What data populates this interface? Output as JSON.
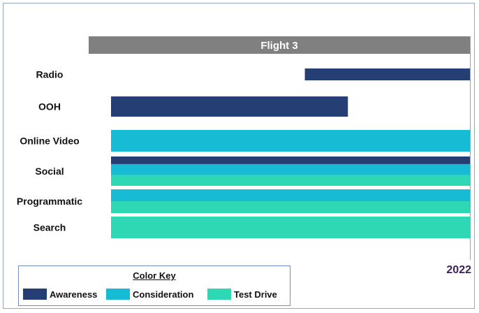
{
  "chart_data": {
    "type": "bar",
    "title": "",
    "header_label": "Flight 3",
    "end_label": "2022",
    "categories": [
      "Radio",
      "OOH",
      "Online Video",
      "Social",
      "Programmatic",
      "Search"
    ],
    "x_range": [
      0,
      1
    ],
    "series": [
      {
        "name": "Awareness",
        "color": "#253f74",
        "bars": [
          {
            "category": "Radio",
            "start": 0.54,
            "end": 1.0,
            "band": [
              0,
              1
            ]
          },
          {
            "category": "OOH",
            "start": 0.0,
            "end": 0.66,
            "band": [
              0,
              1
            ]
          },
          {
            "category": "Social",
            "start": 0.0,
            "end": 1.0,
            "band": [
              0,
              0.26
            ]
          }
        ]
      },
      {
        "name": "Consideration",
        "color": "#17bcd4",
        "bars": [
          {
            "category": "Online Video",
            "start": 0.0,
            "end": 1.0,
            "band": [
              0,
              1
            ]
          },
          {
            "category": "Social",
            "start": 0.0,
            "end": 1.0,
            "band": [
              0.26,
              0.63
            ]
          },
          {
            "category": "Programmatic",
            "start": 0.0,
            "end": 1.0,
            "band": [
              0,
              0.5
            ]
          }
        ]
      },
      {
        "name": "Test Drive",
        "color": "#2fd8b5",
        "bars": [
          {
            "category": "Social",
            "start": 0.0,
            "end": 1.0,
            "band": [
              0.63,
              1
            ]
          },
          {
            "category": "Programmatic",
            "start": 0.0,
            "end": 1.0,
            "band": [
              0.5,
              1
            ]
          },
          {
            "category": "Search",
            "start": 0.0,
            "end": 1.0,
            "band": [
              0,
              1
            ]
          }
        ]
      }
    ],
    "header_color": "#808080",
    "grid": false
  },
  "legend": {
    "title": "Color Key",
    "items": [
      {
        "label": "Awareness",
        "color": "#253f74"
      },
      {
        "label": "Consideration",
        "color": "#17bcd4"
      },
      {
        "label": "Test Drive",
        "color": "#2fd8b5"
      }
    ]
  }
}
